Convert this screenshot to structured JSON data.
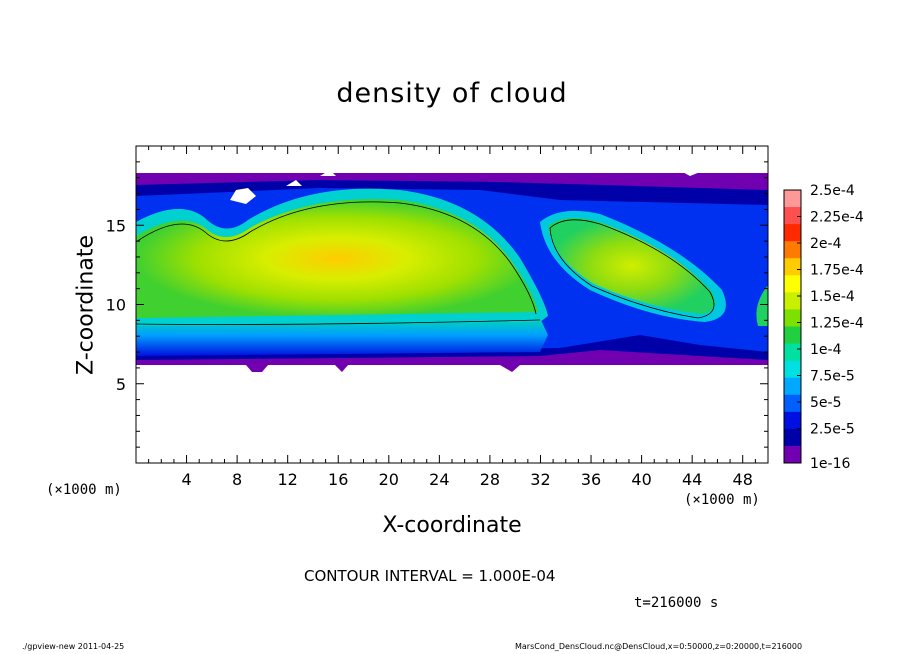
{
  "chart_data": {
    "type": "heatmap",
    "title": "density of cloud",
    "xlabel": "X-coordinate",
    "ylabel": "Z-coordinate",
    "x_unit_label": "(×1000 m)",
    "xlim": [
      0,
      50
    ],
    "ylim": [
      0,
      20
    ],
    "x_ticks": [
      "4",
      "8",
      "12",
      "16",
      "20",
      "24",
      "28",
      "32",
      "36",
      "40",
      "44",
      "48"
    ],
    "y_ticks": [
      "5",
      "10",
      "15"
    ],
    "colorbar": {
      "labels": [
        "2.5e-4",
        "2.25e-4",
        "2e-4",
        "1.75e-4",
        "1.5e-4",
        "1.25e-4",
        "1e-4",
        "7.5e-5",
        "5e-5",
        "2.5e-5",
        "1e-16"
      ],
      "colors": [
        "#ff9999",
        "#ff5050",
        "#ff2a00",
        "#ff7a00",
        "#ffcc00",
        "#ffff00",
        "#c8f000",
        "#7de000",
        "#20d040",
        "#00e0a0",
        "#00e0e0",
        "#00a8ff",
        "#0060ff",
        "#0010e0",
        "#0000a8",
        "#7000b0"
      ]
    },
    "grid": false,
    "legend_placement": "right",
    "contour_interval_note": "CONTOUR INTERVAL = 1.000E-04",
    "field_regions": [
      {
        "region": "cloud layer",
        "x_range": [
          0,
          50
        ],
        "z_range": [
          6.3,
          18.2
        ],
        "level": 1e-16
      },
      {
        "region": "left lobe core",
        "x_center": 20,
        "z_center": 12.5,
        "peak": 0.000175
      },
      {
        "region": "right lobe core",
        "x_center": 39,
        "z_center": 12.5,
        "peak": 0.00015
      },
      {
        "region": "lower dense band",
        "x_range": [
          0,
          32
        ],
        "z_range": [
          6.6,
          8.6
        ],
        "level": 2.5e-05
      }
    ]
  },
  "time_label": "t=216000 s",
  "footer": {
    "left": "./gpview-new   2011-04-25",
    "right": "MarsCond_DensCloud.nc@DensCloud,x=0:50000,z=0:20000,t=216000"
  }
}
